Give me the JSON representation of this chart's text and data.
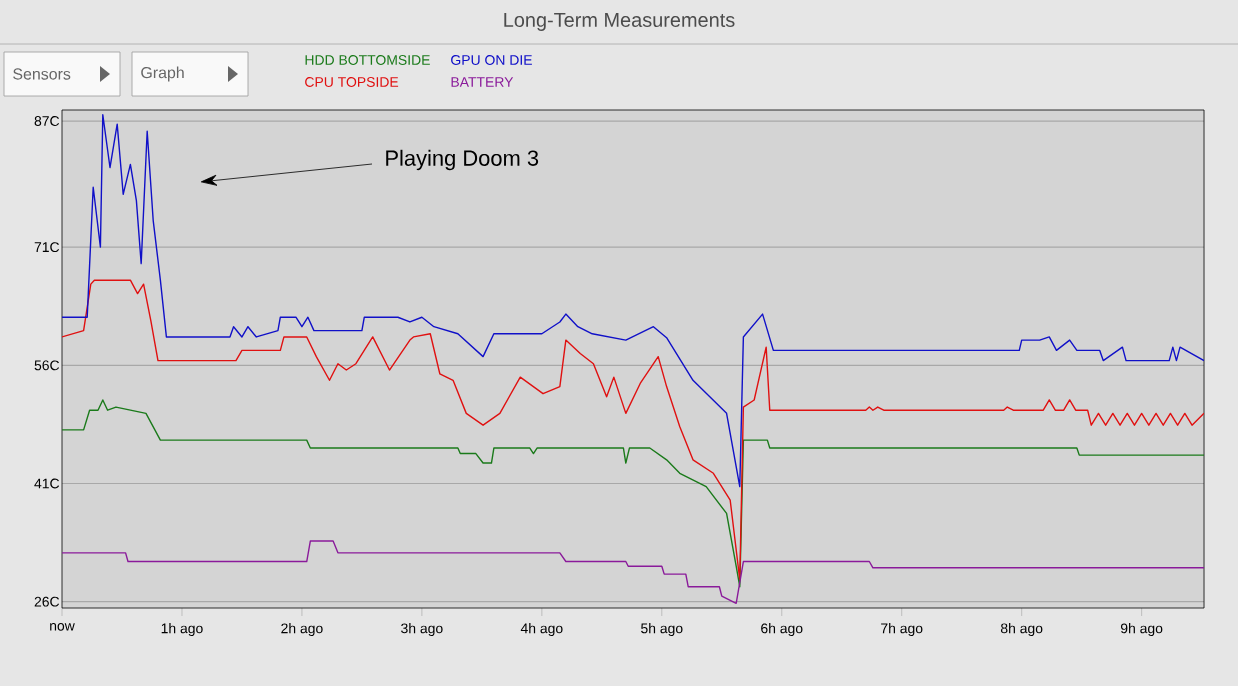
{
  "chart_data": {
    "type": "line",
    "title": "Long-Term Measurements",
    "annotations": [
      "Sensors",
      "Graph",
      "Playing Doom 3"
    ],
    "xlim": [
      0,
      9.52
    ],
    "ylim": [
      25.2,
      88.4
    ],
    "xticks": [
      {
        "value": 0,
        "label": "now"
      },
      {
        "value": 1,
        "label": "1h ago"
      },
      {
        "value": 2,
        "label": "2h ago"
      },
      {
        "value": 3,
        "label": "3h ago"
      },
      {
        "value": 4,
        "label": "4h ago"
      },
      {
        "value": 5,
        "label": "5h ago"
      },
      {
        "value": 6,
        "label": "6h ago"
      },
      {
        "value": 7,
        "label": "7h ago"
      },
      {
        "value": 8,
        "label": "8h ago"
      },
      {
        "value": 9,
        "label": "9h ago"
      }
    ],
    "yticks": [
      {
        "value": 26,
        "label": "26C"
      },
      {
        "value": 41,
        "label": "41C"
      },
      {
        "value": 56,
        "label": "56C"
      },
      {
        "value": 71,
        "label": "71C"
      },
      {
        "value": 87,
        "label": "87C"
      }
    ],
    "grid": "y",
    "legend": "top",
    "line_style": "solid",
    "series": [
      {
        "name": "HDD BOTTOMSIDE",
        "color": "#1a7a1a",
        "x": [
          0,
          0.18,
          0.23,
          0.3,
          0.34,
          0.38,
          0.45,
          0.7,
          0.82,
          2.04,
          2.07,
          3.3,
          3.32,
          3.45,
          3.51,
          3.58,
          3.6,
          3.9,
          3.93,
          3.96,
          4.68,
          4.7,
          4.73,
          4.9,
          5.04,
          5.15,
          5.37,
          5.54,
          5.62,
          5.65,
          5.68,
          5.88,
          5.9,
          8.46,
          8.48,
          9.52
        ],
        "values": [
          47.8,
          47.8,
          50.3,
          50.3,
          51.6,
          50.3,
          50.7,
          49.9,
          46.5,
          46.5,
          45.5,
          45.5,
          44.8,
          44.8,
          43.6,
          43.6,
          45.5,
          45.5,
          44.8,
          45.5,
          45.5,
          43.6,
          45.5,
          45.5,
          44,
          42.3,
          40.6,
          37.2,
          30.5,
          27.9,
          46.5,
          46.5,
          45.5,
          45.5,
          44.6,
          44.6
        ]
      },
      {
        "name": "CPU TOPSIDE",
        "color": "#e01010",
        "x": [
          0,
          0.18,
          0.24,
          0.27,
          0.57,
          0.63,
          0.68,
          0.74,
          0.8,
          1.45,
          1.5,
          1.82,
          1.85,
          2.04,
          2.12,
          2.23,
          2.3,
          2.37,
          2.45,
          2.59,
          2.73,
          2.9,
          2.93,
          3.07,
          3.15,
          3.26,
          3.37,
          3.51,
          3.65,
          3.82,
          4.01,
          4.15,
          4.2,
          4.32,
          4.43,
          4.54,
          4.6,
          4.7,
          4.82,
          4.97,
          5.04,
          5.15,
          5.26,
          5.43,
          5.57,
          5.65,
          5.68,
          5.77,
          5.87,
          5.9,
          6.7,
          6.73,
          6.76,
          6.8,
          6.85,
          7.85,
          7.88,
          7.93,
          8.18,
          8.23,
          8.28,
          8.35,
          8.4,
          8.45,
          8.55,
          8.58,
          8.64,
          8.7,
          8.76,
          8.82,
          8.88,
          8.94,
          9.0,
          9.06,
          9.12,
          9.18,
          9.24,
          9.3,
          9.36,
          9.42,
          9.52
        ],
        "values": [
          59.6,
          60.4,
          66.3,
          66.8,
          66.8,
          65.1,
          66.3,
          61.7,
          56.6,
          56.6,
          57.9,
          57.9,
          59.6,
          59.6,
          57.1,
          54.1,
          56.2,
          55.4,
          56.2,
          59.6,
          55.4,
          59.2,
          59.6,
          60,
          54.9,
          54.1,
          49.9,
          48.4,
          49.9,
          54.5,
          52.4,
          53.3,
          59.2,
          57.5,
          56.2,
          52,
          54.5,
          49.9,
          53.7,
          57.1,
          53.3,
          48.2,
          44,
          42.3,
          38.9,
          28.8,
          50.7,
          51.6,
          58.3,
          50.3,
          50.3,
          50.7,
          50.3,
          50.7,
          50.3,
          50.3,
          50.7,
          50.3,
          50.3,
          51.6,
          50.3,
          50.3,
          51.6,
          50.3,
          50.3,
          48.4,
          49.9,
          48.4,
          49.9,
          48.4,
          49.9,
          48.4,
          49.9,
          48.4,
          49.9,
          48.4,
          49.9,
          48.4,
          49.9,
          48.4,
          49.9
        ]
      },
      {
        "name": "GPU ON DIE",
        "color": "#1010c8",
        "x": [
          0,
          0.21,
          0.26,
          0.32,
          0.34,
          0.4,
          0.46,
          0.51,
          0.57,
          0.62,
          0.66,
          0.71,
          0.76,
          0.82,
          0.87,
          1.4,
          1.43,
          1.5,
          1.55,
          1.62,
          1.8,
          1.82,
          1.95,
          2.0,
          2.05,
          2.1,
          2.5,
          2.52,
          2.8,
          2.9,
          3.0,
          3.1,
          3.3,
          3.51,
          3.6,
          4.0,
          4.15,
          4.2,
          4.3,
          4.42,
          4.7,
          4.93,
          5.04,
          5.26,
          5.54,
          5.65,
          5.68,
          5.84,
          5.93,
          7.98,
          8.0,
          8.15,
          8.23,
          8.29,
          8.4,
          8.46,
          8.65,
          8.68,
          8.84,
          8.87,
          9.23,
          9.26,
          9.29,
          9.32,
          9.52
        ],
        "values": [
          62.1,
          62.1,
          78.6,
          71,
          87.8,
          81.1,
          86.6,
          77.7,
          81.5,
          76.9,
          68.9,
          85.7,
          74.4,
          66.8,
          59.6,
          59.6,
          60.9,
          59.6,
          60.9,
          59.6,
          60.4,
          62.1,
          62.1,
          60.9,
          62.1,
          60.4,
          60.4,
          62.1,
          62.1,
          61.5,
          62.1,
          60.9,
          60,
          57.1,
          60,
          60,
          61.5,
          62.5,
          60.9,
          60,
          59.2,
          60.9,
          59.5,
          54.1,
          49.9,
          40.6,
          59.6,
          62.5,
          57.9,
          57.9,
          59.2,
          59.2,
          59.6,
          57.9,
          59.2,
          57.9,
          57.9,
          56.6,
          58.3,
          56.6,
          56.6,
          58.3,
          56.6,
          58.3,
          56.6
        ]
      },
      {
        "name": "BATTERY",
        "color": "#8a1a9a",
        "x": [
          0,
          0.53,
          0.55,
          2.04,
          2.07,
          2.26,
          2.3,
          4.15,
          4.2,
          4.7,
          4.72,
          5.0,
          5.02,
          5.2,
          5.22,
          5.48,
          5.5,
          5.62,
          5.68,
          6.73,
          6.76,
          9.52
        ],
        "values": [
          32.2,
          32.2,
          31.1,
          31.1,
          33.7,
          33.7,
          32.2,
          32.2,
          31.1,
          31.1,
          30.5,
          30.5,
          29.5,
          29.5,
          27.9,
          27.9,
          26.7,
          25.8,
          31.1,
          31.1,
          30.3,
          30.3
        ]
      }
    ]
  }
}
